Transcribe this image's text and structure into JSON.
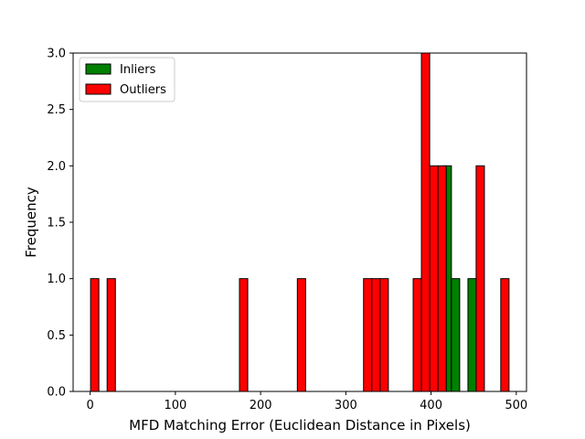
{
  "chart_data": {
    "type": "histogram",
    "xlabel": "MFD Matching Error (Euclidean Distance in Pixels)",
    "ylabel": "Frequency",
    "xlim": [
      -20,
      512
    ],
    "ylim": [
      0,
      3.0
    ],
    "xticks": [
      0,
      100,
      200,
      300,
      400,
      500
    ],
    "xtick_labels": [
      "0",
      "100",
      "200",
      "300",
      "400",
      "500"
    ],
    "yticks": [
      0,
      0.5,
      1.0,
      1.5,
      2.0,
      2.5,
      3.0
    ],
    "ytick_labels": [
      "0.0",
      "0.5",
      "1.0",
      "1.5",
      "2.0",
      "2.5",
      "3.0"
    ],
    "bin_width": 9.7,
    "legend_position": "upper left",
    "series": [
      {
        "name": "Inliers",
        "color": "#008000",
        "bins": [
          {
            "x": 404.5,
            "value": 1
          },
          {
            "x": 414.2,
            "value": 2
          },
          {
            "x": 423.9,
            "value": 1
          },
          {
            "x": 443.3,
            "value": 1
          }
        ]
      },
      {
        "name": "Outliers",
        "color": "#ff0000",
        "bins": [
          {
            "x": 0.5,
            "value": 1
          },
          {
            "x": 19.9,
            "value": 1
          },
          {
            "x": 175.2,
            "value": 1
          },
          {
            "x": 243.1,
            "value": 1
          },
          {
            "x": 320.8,
            "value": 1
          },
          {
            "x": 330.5,
            "value": 1
          },
          {
            "x": 340.2,
            "value": 1
          },
          {
            "x": 379.0,
            "value": 1
          },
          {
            "x": 388.7,
            "value": 3
          },
          {
            "x": 398.4,
            "value": 2
          },
          {
            "x": 408.1,
            "value": 2
          },
          {
            "x": 452.9,
            "value": 2
          },
          {
            "x": 481.8,
            "value": 1
          }
        ]
      }
    ]
  }
}
